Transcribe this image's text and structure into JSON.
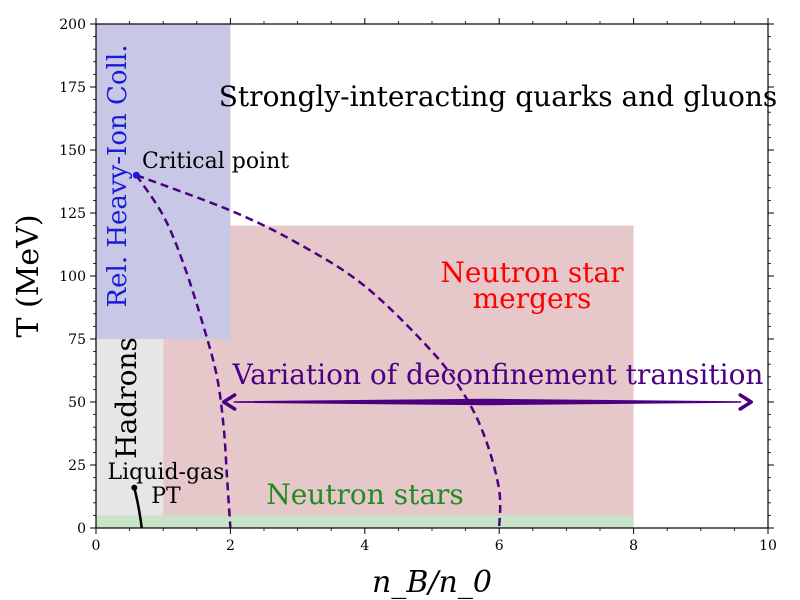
{
  "chart_data": {
    "type": "area",
    "title": "",
    "xlabel": "n_B/n_0",
    "ylabel": "T (MeV)",
    "xlim": [
      0,
      10
    ],
    "ylim": [
      0,
      200
    ],
    "x_ticks": [
      0,
      2,
      4,
      6,
      8,
      10
    ],
    "y_ticks": [
      0,
      25,
      50,
      75,
      100,
      125,
      150,
      175,
      200
    ],
    "regions": [
      {
        "name": "Hadrons",
        "x": [
          0,
          1
        ],
        "y": [
          0,
          75
        ],
        "color": "#e6e6e6"
      },
      {
        "name": "Neutron star mergers",
        "x": [
          1,
          8
        ],
        "y": [
          0,
          120
        ],
        "color": "#e6c8cb"
      },
      {
        "name": "Rel. Heavy-Ion Coll.",
        "x": [
          0,
          2
        ],
        "y": [
          75,
          200
        ],
        "color": "#c8c8e6"
      },
      {
        "name": "Neutron stars",
        "x": [
          0,
          8
        ],
        "y": [
          0,
          5
        ],
        "color": "#c8e3c8"
      }
    ],
    "annotations": {
      "quarks": {
        "text": "Strongly-interacting quarks and gluons",
        "color": "#000000"
      },
      "heavy_ion": {
        "text": "Rel. Heavy-Ion Coll.",
        "color": "#1a1adb"
      },
      "mergers_line1": {
        "text": "Neutron star",
        "color": "#ff0000"
      },
      "mergers_line2": {
        "text": "mergers",
        "color": "#ff0000"
      },
      "hadrons": {
        "text": "Hadrons",
        "color": "#000000"
      },
      "neutron_stars": {
        "text": "Neutron stars",
        "color": "#228b22"
      },
      "critical_point": {
        "text": "Critical point",
        "color": "#000000"
      },
      "liquid_gas_1": {
        "text": "Liquid-gas",
        "color": "#000000"
      },
      "liquid_gas_2": {
        "text": "PT",
        "color": "#000000"
      },
      "deconfinement": {
        "text": "Variation of deconfinement transition",
        "color": "#4b0082"
      }
    },
    "critical_point": {
      "x": 0.6,
      "y": 140
    },
    "transition_curves": [
      {
        "name": "inner",
        "color": "#4b0082",
        "points": [
          [
            0.6,
            140
          ],
          [
            1.0,
            124
          ],
          [
            1.3,
            105
          ],
          [
            1.6,
            80
          ],
          [
            1.8,
            60
          ],
          [
            1.9,
            40
          ],
          [
            1.95,
            20
          ],
          [
            2.0,
            0
          ]
        ]
      },
      {
        "name": "outer",
        "color": "#4b0082",
        "points": [
          [
            0.6,
            140
          ],
          [
            2.0,
            126
          ],
          [
            3.0,
            113
          ],
          [
            4.0,
            96
          ],
          [
            5.0,
            70
          ],
          [
            5.5,
            52
          ],
          [
            5.8,
            35
          ],
          [
            6.0,
            15
          ],
          [
            6.0,
            0
          ]
        ]
      }
    ],
    "liquid_gas_line": {
      "color": "#000000",
      "points": [
        [
          0.57,
          16
        ],
        [
          0.62,
          10
        ],
        [
          0.66,
          4
        ],
        [
          0.68,
          0
        ]
      ]
    },
    "deconfinement_arrow": {
      "x_start": 1.9,
      "x_end": 9.75,
      "y": 50,
      "color": "#4b0082"
    }
  }
}
